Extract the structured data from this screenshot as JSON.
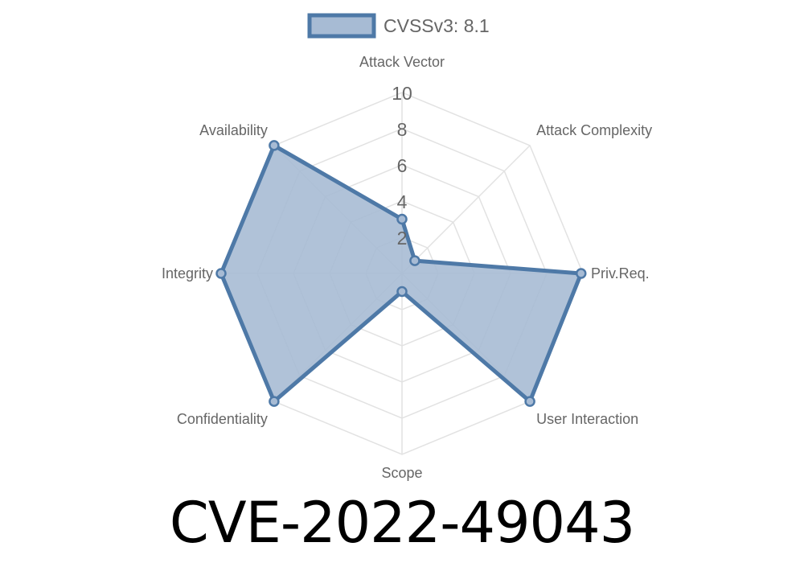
{
  "title": "CVE-2022-49043",
  "chart_data": {
    "type": "radar",
    "axes": [
      "Attack Vector",
      "Attack Complexity",
      "Priv.Req.",
      "User Interaction",
      "Scope",
      "Confidentiality",
      "Integrity",
      "Availability"
    ],
    "series": [
      {
        "name": "CVSSv3: 8.1",
        "values": [
          3.0,
          1.0,
          9.9,
          10,
          1.0,
          10,
          10,
          10
        ]
      }
    ],
    "rlim": [
      0,
      10
    ],
    "ticks": [
      "2",
      "4",
      "6",
      "8",
      "10"
    ],
    "grid": true,
    "legend": "top",
    "colors": {
      "line": "#4e79a7",
      "fill": "#a7bbd4",
      "grid": "#e2e2e2"
    }
  }
}
